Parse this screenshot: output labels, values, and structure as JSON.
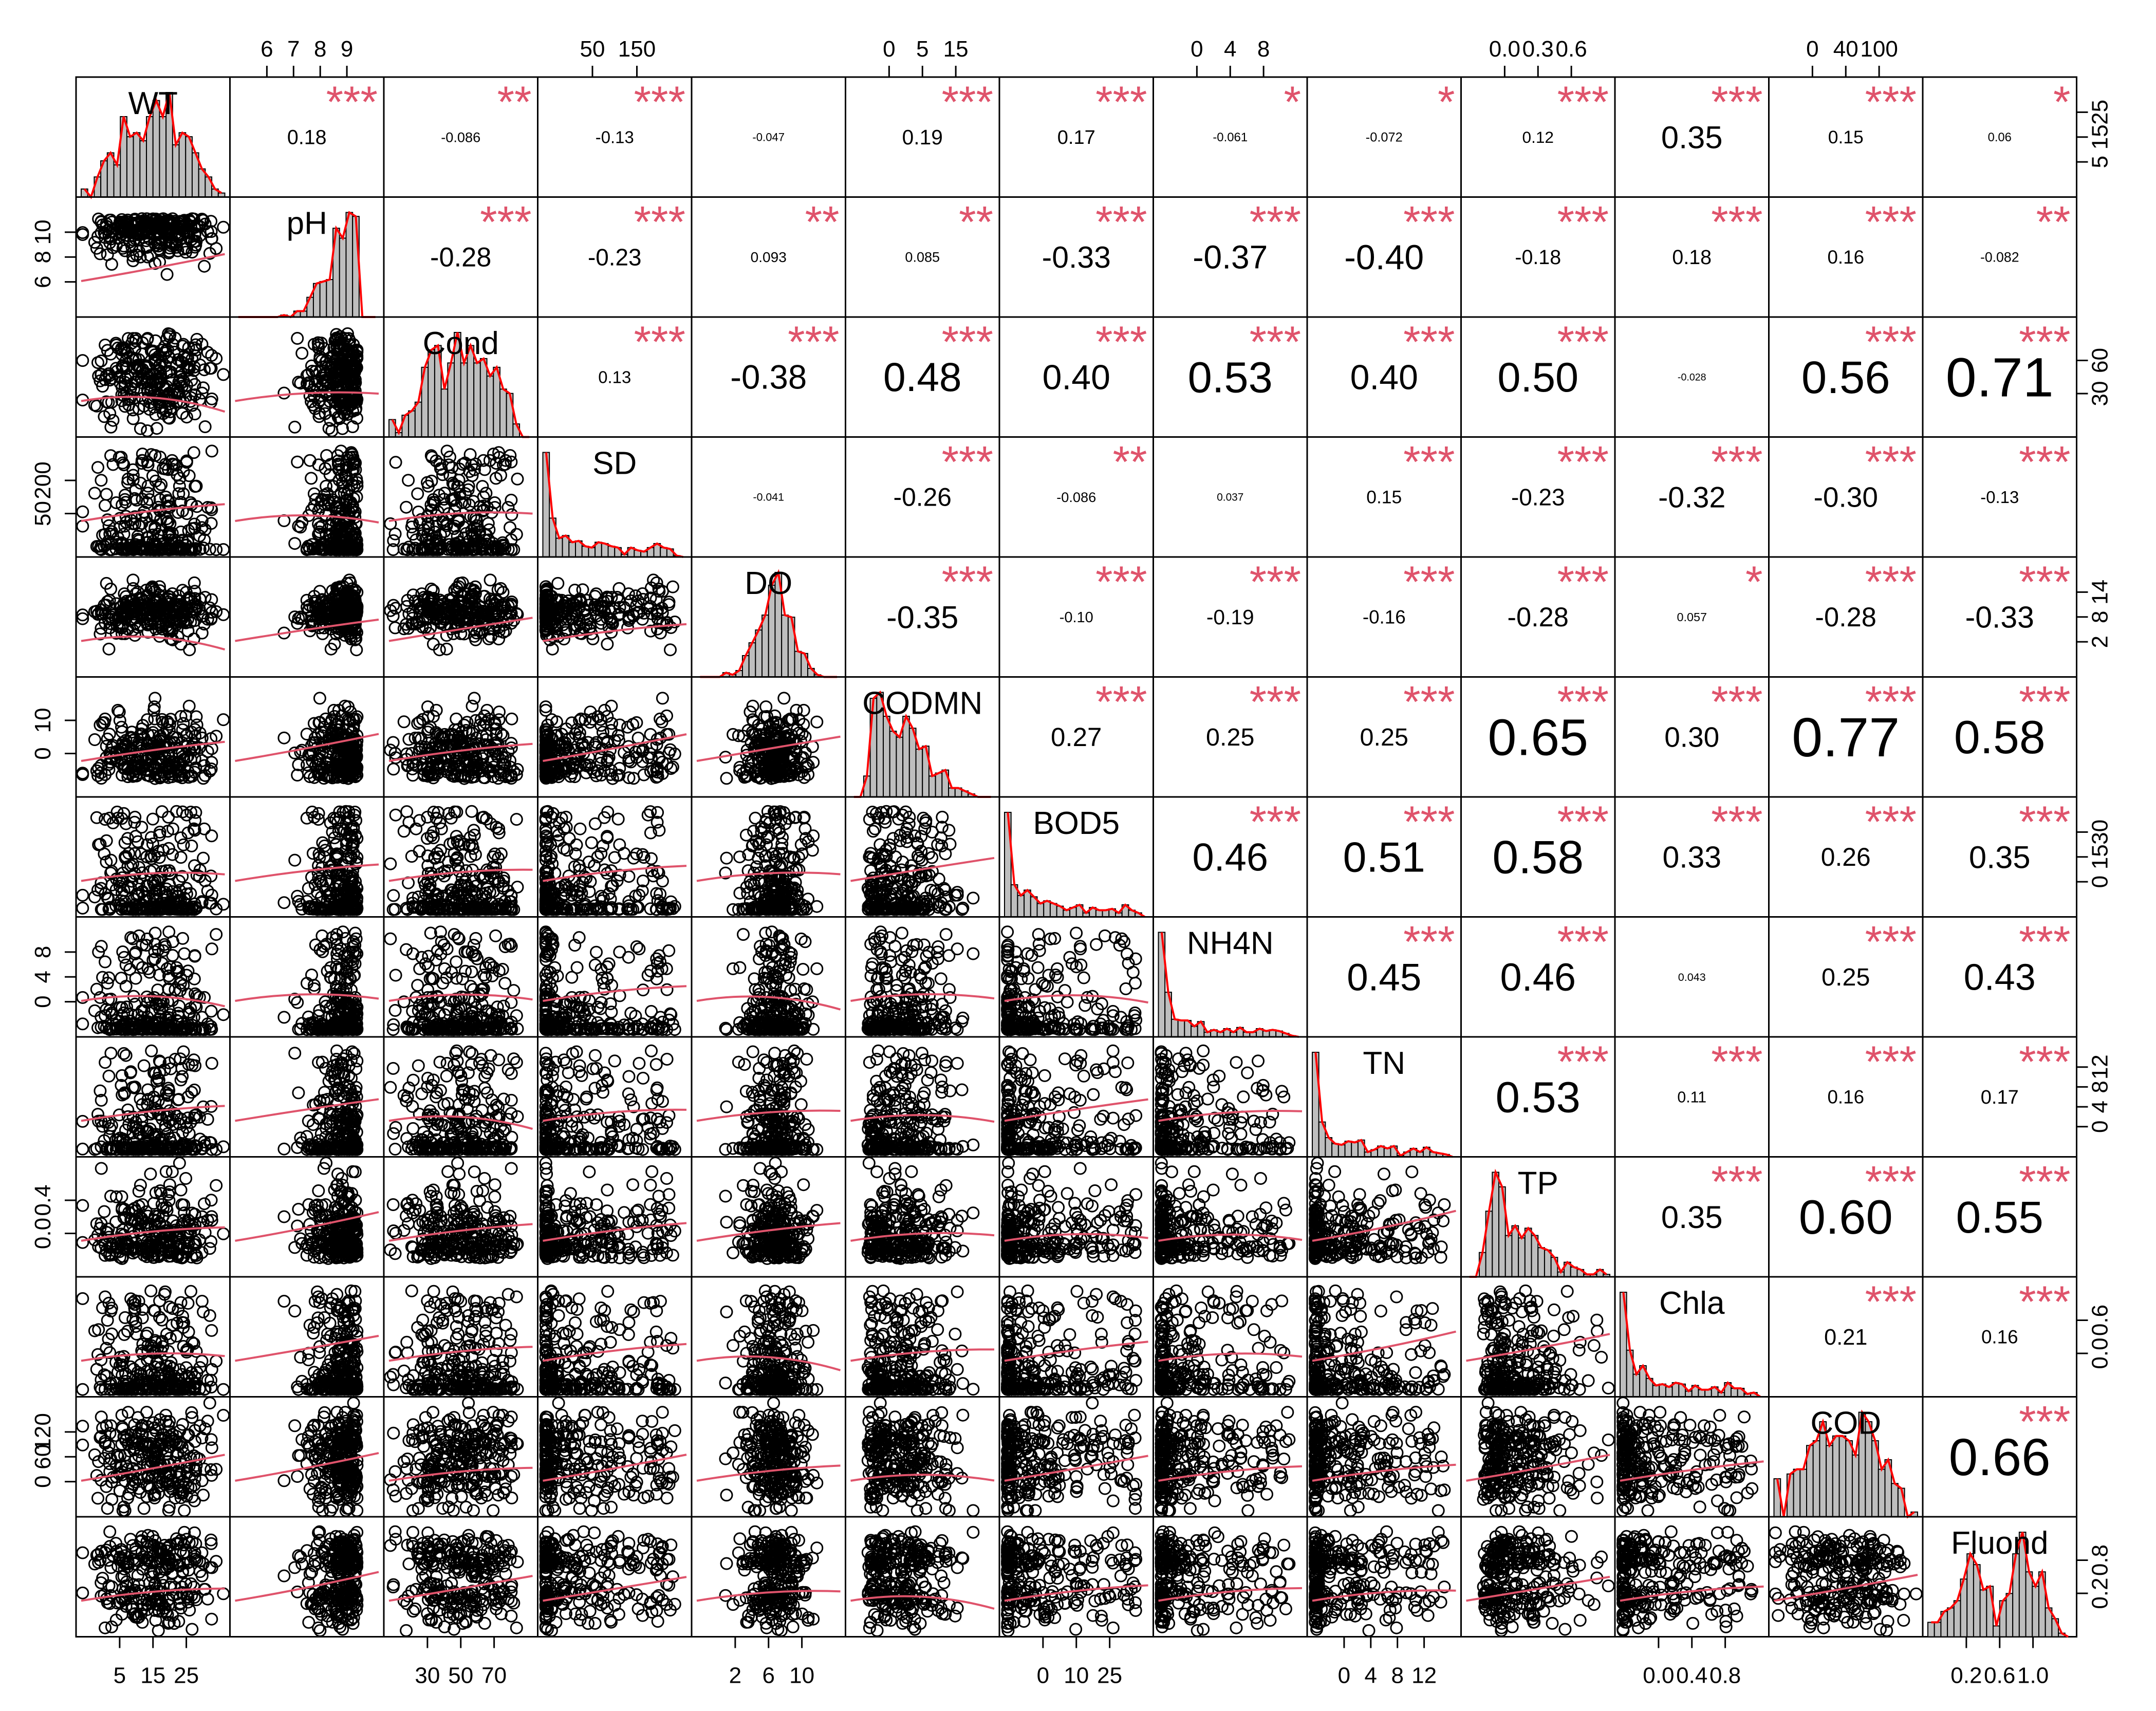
{
  "chart_data": {
    "type": "scatter_matrix",
    "title": "",
    "variables": [
      "WT",
      "pH",
      "Cond",
      "SD",
      "DO",
      "CODMN",
      "BOD5",
      "NH4N",
      "TN",
      "TP",
      "Chla",
      "COD",
      "Fluond"
    ],
    "ranges": [
      [
        4,
        27
      ],
      [
        6,
        10
      ],
      [
        20,
        80
      ],
      [
        0,
        250
      ],
      [
        0,
        14
      ],
      [
        0,
        18
      ],
      [
        0,
        35
      ],
      [
        0,
        9
      ],
      [
        0,
        13
      ],
      [
        0,
        0.7
      ],
      [
        0,
        1
      ],
      [
        0,
        130
      ],
      [
        0.15,
        1.05
      ]
    ],
    "axis_ticks": {
      "top": [
        {
          "var": 1,
          "ticks": [
            "6",
            "7",
            "8",
            "9"
          ]
        },
        {
          "var": 3,
          "ticks": [
            "50",
            "150"
          ]
        },
        {
          "var": 5,
          "ticks": [
            "0",
            "5",
            "15"
          ]
        },
        {
          "var": 7,
          "ticks": [
            "0",
            "4",
            "8"
          ]
        },
        {
          "var": 9,
          "ticks": [
            "0.0",
            "0.3",
            "0.6"
          ]
        },
        {
          "var": 11,
          "ticks": [
            "0",
            "40",
            "100"
          ]
        }
      ],
      "bottom": [
        {
          "var": 0,
          "ticks": [
            "5",
            "15",
            "25"
          ]
        },
        {
          "var": 2,
          "ticks": [
            "30",
            "50",
            "70"
          ]
        },
        {
          "var": 4,
          "ticks": [
            "2",
            "6",
            "10"
          ]
        },
        {
          "var": 6,
          "ticks": [
            "0",
            "10",
            "25"
          ]
        },
        {
          "var": 8,
          "ticks": [
            "0",
            "4",
            "8",
            "12"
          ]
        },
        {
          "var": 10,
          "ticks": [
            "0.0",
            "0.4",
            "0.8"
          ]
        },
        {
          "var": 12,
          "ticks": [
            "0.2",
            "0.6",
            "1.0"
          ]
        }
      ],
      "left": [
        {
          "var": 1,
          "ticks": [
            "6",
            "8",
            "10"
          ]
        },
        {
          "var": 3,
          "ticks": [
            "50",
            "200"
          ]
        },
        {
          "var": 5,
          "ticks": [
            "0",
            "10"
          ]
        },
        {
          "var": 7,
          "ticks": [
            "0",
            "4",
            "8"
          ]
        },
        {
          "var": 9,
          "ticks": [
            "0.0",
            "0.4"
          ]
        },
        {
          "var": 11,
          "ticks": [
            "0",
            "60",
            "120"
          ]
        }
      ],
      "right": [
        {
          "var": 0,
          "ticks": [
            "5",
            "15",
            "25"
          ]
        },
        {
          "var": 2,
          "ticks": [
            "30",
            "60"
          ]
        },
        {
          "var": 4,
          "ticks": [
            "2",
            "8",
            "14"
          ]
        },
        {
          "var": 6,
          "ticks": [
            "0",
            "15",
            "30"
          ]
        },
        {
          "var": 8,
          "ticks": [
            "0",
            "4",
            "8",
            "12"
          ]
        },
        {
          "var": 10,
          "ticks": [
            "0.0",
            "0.6"
          ]
        },
        {
          "var": 12,
          "ticks": [
            "0.2",
            "0.8"
          ]
        }
      ]
    },
    "correlations": [
      {
        "i": 0,
        "j": 1,
        "r": "0.18",
        "sig": "***"
      },
      {
        "i": 0,
        "j": 2,
        "r": "-0.086",
        "sig": "**"
      },
      {
        "i": 0,
        "j": 3,
        "r": "-0.13",
        "sig": "***"
      },
      {
        "i": 0,
        "j": 4,
        "r": "-0.047",
        "sig": ""
      },
      {
        "i": 0,
        "j": 5,
        "r": "0.19",
        "sig": "***"
      },
      {
        "i": 0,
        "j": 6,
        "r": "0.17",
        "sig": "***"
      },
      {
        "i": 0,
        "j": 7,
        "r": "-0.061",
        "sig": "*"
      },
      {
        "i": 0,
        "j": 8,
        "r": "-0.072",
        "sig": "*"
      },
      {
        "i": 0,
        "j": 9,
        "r": "0.12",
        "sig": "***"
      },
      {
        "i": 0,
        "j": 10,
        "r": "0.35",
        "sig": "***"
      },
      {
        "i": 0,
        "j": 11,
        "r": "0.15",
        "sig": "***"
      },
      {
        "i": 0,
        "j": 12,
        "r": "0.06",
        "sig": "*"
      },
      {
        "i": 1,
        "j": 2,
        "r": "-0.28",
        "sig": "***"
      },
      {
        "i": 1,
        "j": 3,
        "r": "-0.23",
        "sig": "***"
      },
      {
        "i": 1,
        "j": 4,
        "r": "0.093",
        "sig": "**"
      },
      {
        "i": 1,
        "j": 5,
        "r": "0.085",
        "sig": "**"
      },
      {
        "i": 1,
        "j": 6,
        "r": "-0.33",
        "sig": "***"
      },
      {
        "i": 1,
        "j": 7,
        "r": "-0.37",
        "sig": "***"
      },
      {
        "i": 1,
        "j": 8,
        "r": "-0.40",
        "sig": "***"
      },
      {
        "i": 1,
        "j": 9,
        "r": "-0.18",
        "sig": "***"
      },
      {
        "i": 1,
        "j": 10,
        "r": "0.18",
        "sig": "***"
      },
      {
        "i": 1,
        "j": 11,
        "r": "0.16",
        "sig": "***"
      },
      {
        "i": 1,
        "j": 12,
        "r": "-0.082",
        "sig": "**"
      },
      {
        "i": 2,
        "j": 3,
        "r": "0.13",
        "sig": "***"
      },
      {
        "i": 2,
        "j": 4,
        "r": "-0.38",
        "sig": "***"
      },
      {
        "i": 2,
        "j": 5,
        "r": "0.48",
        "sig": "***"
      },
      {
        "i": 2,
        "j": 6,
        "r": "0.40",
        "sig": "***"
      },
      {
        "i": 2,
        "j": 7,
        "r": "0.53",
        "sig": "***"
      },
      {
        "i": 2,
        "j": 8,
        "r": "0.40",
        "sig": "***"
      },
      {
        "i": 2,
        "j": 9,
        "r": "0.50",
        "sig": "***"
      },
      {
        "i": 2,
        "j": 10,
        "r": "-0.028",
        "sig": ""
      },
      {
        "i": 2,
        "j": 11,
        "r": "0.56",
        "sig": "***"
      },
      {
        "i": 2,
        "j": 12,
        "r": "0.71",
        "sig": "***"
      },
      {
        "i": 3,
        "j": 4,
        "r": "-0.041",
        "sig": ""
      },
      {
        "i": 3,
        "j": 5,
        "r": "-0.26",
        "sig": "***"
      },
      {
        "i": 3,
        "j": 6,
        "r": "-0.086",
        "sig": "**"
      },
      {
        "i": 3,
        "j": 7,
        "r": "0.037",
        "sig": ""
      },
      {
        "i": 3,
        "j": 8,
        "r": "0.15",
        "sig": "***"
      },
      {
        "i": 3,
        "j": 9,
        "r": "-0.23",
        "sig": "***"
      },
      {
        "i": 3,
        "j": 10,
        "r": "-0.32",
        "sig": "***"
      },
      {
        "i": 3,
        "j": 11,
        "r": "-0.30",
        "sig": "***"
      },
      {
        "i": 3,
        "j": 12,
        "r": "-0.13",
        "sig": "***"
      },
      {
        "i": 4,
        "j": 5,
        "r": "-0.35",
        "sig": "***"
      },
      {
        "i": 4,
        "j": 6,
        "r": "-0.10",
        "sig": "***"
      },
      {
        "i": 4,
        "j": 7,
        "r": "-0.19",
        "sig": "***"
      },
      {
        "i": 4,
        "j": 8,
        "r": "-0.16",
        "sig": "***"
      },
      {
        "i": 4,
        "j": 9,
        "r": "-0.28",
        "sig": "***"
      },
      {
        "i": 4,
        "j": 10,
        "r": "0.057",
        "sig": "*"
      },
      {
        "i": 4,
        "j": 11,
        "r": "-0.28",
        "sig": "***"
      },
      {
        "i": 4,
        "j": 12,
        "r": "-0.33",
        "sig": "***"
      },
      {
        "i": 5,
        "j": 6,
        "r": "0.27",
        "sig": "***"
      },
      {
        "i": 5,
        "j": 7,
        "r": "0.25",
        "sig": "***"
      },
      {
        "i": 5,
        "j": 8,
        "r": "0.25",
        "sig": "***"
      },
      {
        "i": 5,
        "j": 9,
        "r": "0.65",
        "sig": "***"
      },
      {
        "i": 5,
        "j": 10,
        "r": "0.30",
        "sig": "***"
      },
      {
        "i": 5,
        "j": 11,
        "r": "0.77",
        "sig": "***"
      },
      {
        "i": 5,
        "j": 12,
        "r": "0.58",
        "sig": "***"
      },
      {
        "i": 6,
        "j": 7,
        "r": "0.46",
        "sig": "***"
      },
      {
        "i": 6,
        "j": 8,
        "r": "0.51",
        "sig": "***"
      },
      {
        "i": 6,
        "j": 9,
        "r": "0.58",
        "sig": "***"
      },
      {
        "i": 6,
        "j": 10,
        "r": "0.33",
        "sig": "***"
      },
      {
        "i": 6,
        "j": 11,
        "r": "0.26",
        "sig": "***"
      },
      {
        "i": 6,
        "j": 12,
        "r": "0.35",
        "sig": "***"
      },
      {
        "i": 7,
        "j": 8,
        "r": "0.45",
        "sig": "***"
      },
      {
        "i": 7,
        "j": 9,
        "r": "0.46",
        "sig": "***"
      },
      {
        "i": 7,
        "j": 10,
        "r": "0.043",
        "sig": ""
      },
      {
        "i": 7,
        "j": 11,
        "r": "0.25",
        "sig": "***"
      },
      {
        "i": 7,
        "j": 12,
        "r": "0.43",
        "sig": "***"
      },
      {
        "i": 8,
        "j": 9,
        "r": "0.53",
        "sig": "***"
      },
      {
        "i": 8,
        "j": 10,
        "r": "0.11",
        "sig": "***"
      },
      {
        "i": 8,
        "j": 11,
        "r": "0.16",
        "sig": "***"
      },
      {
        "i": 8,
        "j": 12,
        "r": "0.17",
        "sig": "***"
      },
      {
        "i": 9,
        "j": 10,
        "r": "0.35",
        "sig": "***"
      },
      {
        "i": 9,
        "j": 11,
        "r": "0.60",
        "sig": "***"
      },
      {
        "i": 9,
        "j": 12,
        "r": "0.55",
        "sig": "***"
      },
      {
        "i": 10,
        "j": 11,
        "r": "0.21",
        "sig": "***"
      },
      {
        "i": 10,
        "j": 12,
        "r": "0.16",
        "sig": "***"
      },
      {
        "i": 11,
        "j": 12,
        "r": "0.66",
        "sig": "***"
      }
    ],
    "histogram_shapes": [
      "bimodal",
      "left-skew",
      "bimodal",
      "right-skew-peaked",
      "normal",
      "right-skew",
      "right-skew-peaked",
      "right-skew-peaked",
      "right-skew-peaked",
      "right-skew",
      "right-skew-peaked",
      "bimodal",
      "bimodal-left"
    ],
    "grid": false,
    "colors": {
      "significance": "#DF536B",
      "smooth_line": "#DF536B",
      "density_line": "#FF0000",
      "histogram_fill": "#BEBEBE",
      "points": "#000000"
    }
  }
}
